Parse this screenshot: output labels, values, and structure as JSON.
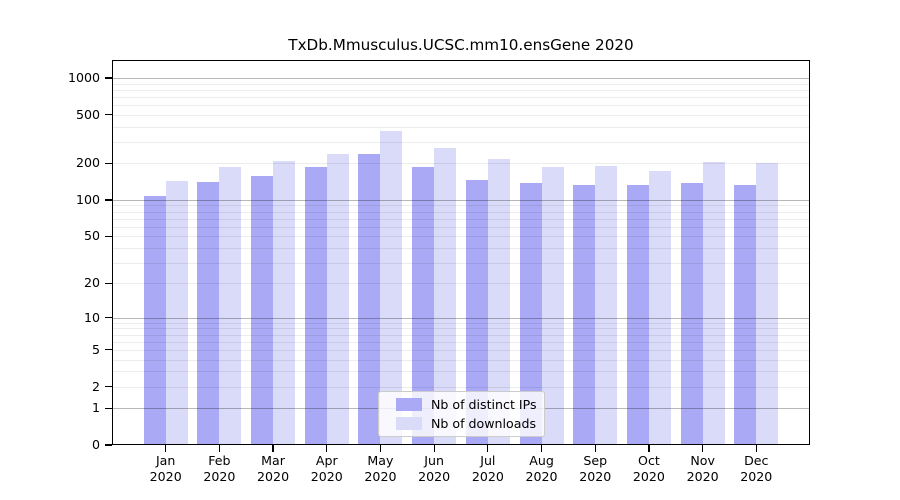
{
  "window": {
    "background": "#ffffff"
  },
  "chart_data": {
    "type": "bar",
    "title": "TxDb.Mmusculus.UCSC.mm10.ensGene 2020",
    "scale": "log10(1+x)",
    "categories": [
      "Jan",
      "Feb",
      "Mar",
      "Apr",
      "May",
      "Jun",
      "Jul",
      "Aug",
      "Sep",
      "Oct",
      "Nov",
      "Dec"
    ],
    "category_year": "2020",
    "series": [
      {
        "name": "Nb of distinct IPs",
        "color": "#a9a9f5",
        "values": [
          108,
          140,
          158,
          186,
          238,
          188,
          145,
          138,
          133,
          133,
          137,
          133
        ]
      },
      {
        "name": "Nb of downloads",
        "color": "#dadaf9",
        "values": [
          143,
          187,
          210,
          239,
          368,
          269,
          218,
          185,
          189,
          173,
          206,
          202
        ]
      }
    ],
    "yticks": [
      0,
      1,
      2,
      5,
      10,
      20,
      50,
      100,
      200,
      500,
      1000
    ],
    "ylim": [
      0,
      1400
    ],
    "xlabel": "",
    "ylabel": "",
    "grid": true,
    "legend_position": "lower-center-inside"
  },
  "colors": {
    "axis": "#000000",
    "text": "#000000",
    "grid_major": "rgba(0,0,0,0.28)",
    "grid_minor": "rgba(0,0,0,0.075)",
    "legend_bg": "rgba(255,255,255,0.8)",
    "legend_border": "#cccccc"
  }
}
